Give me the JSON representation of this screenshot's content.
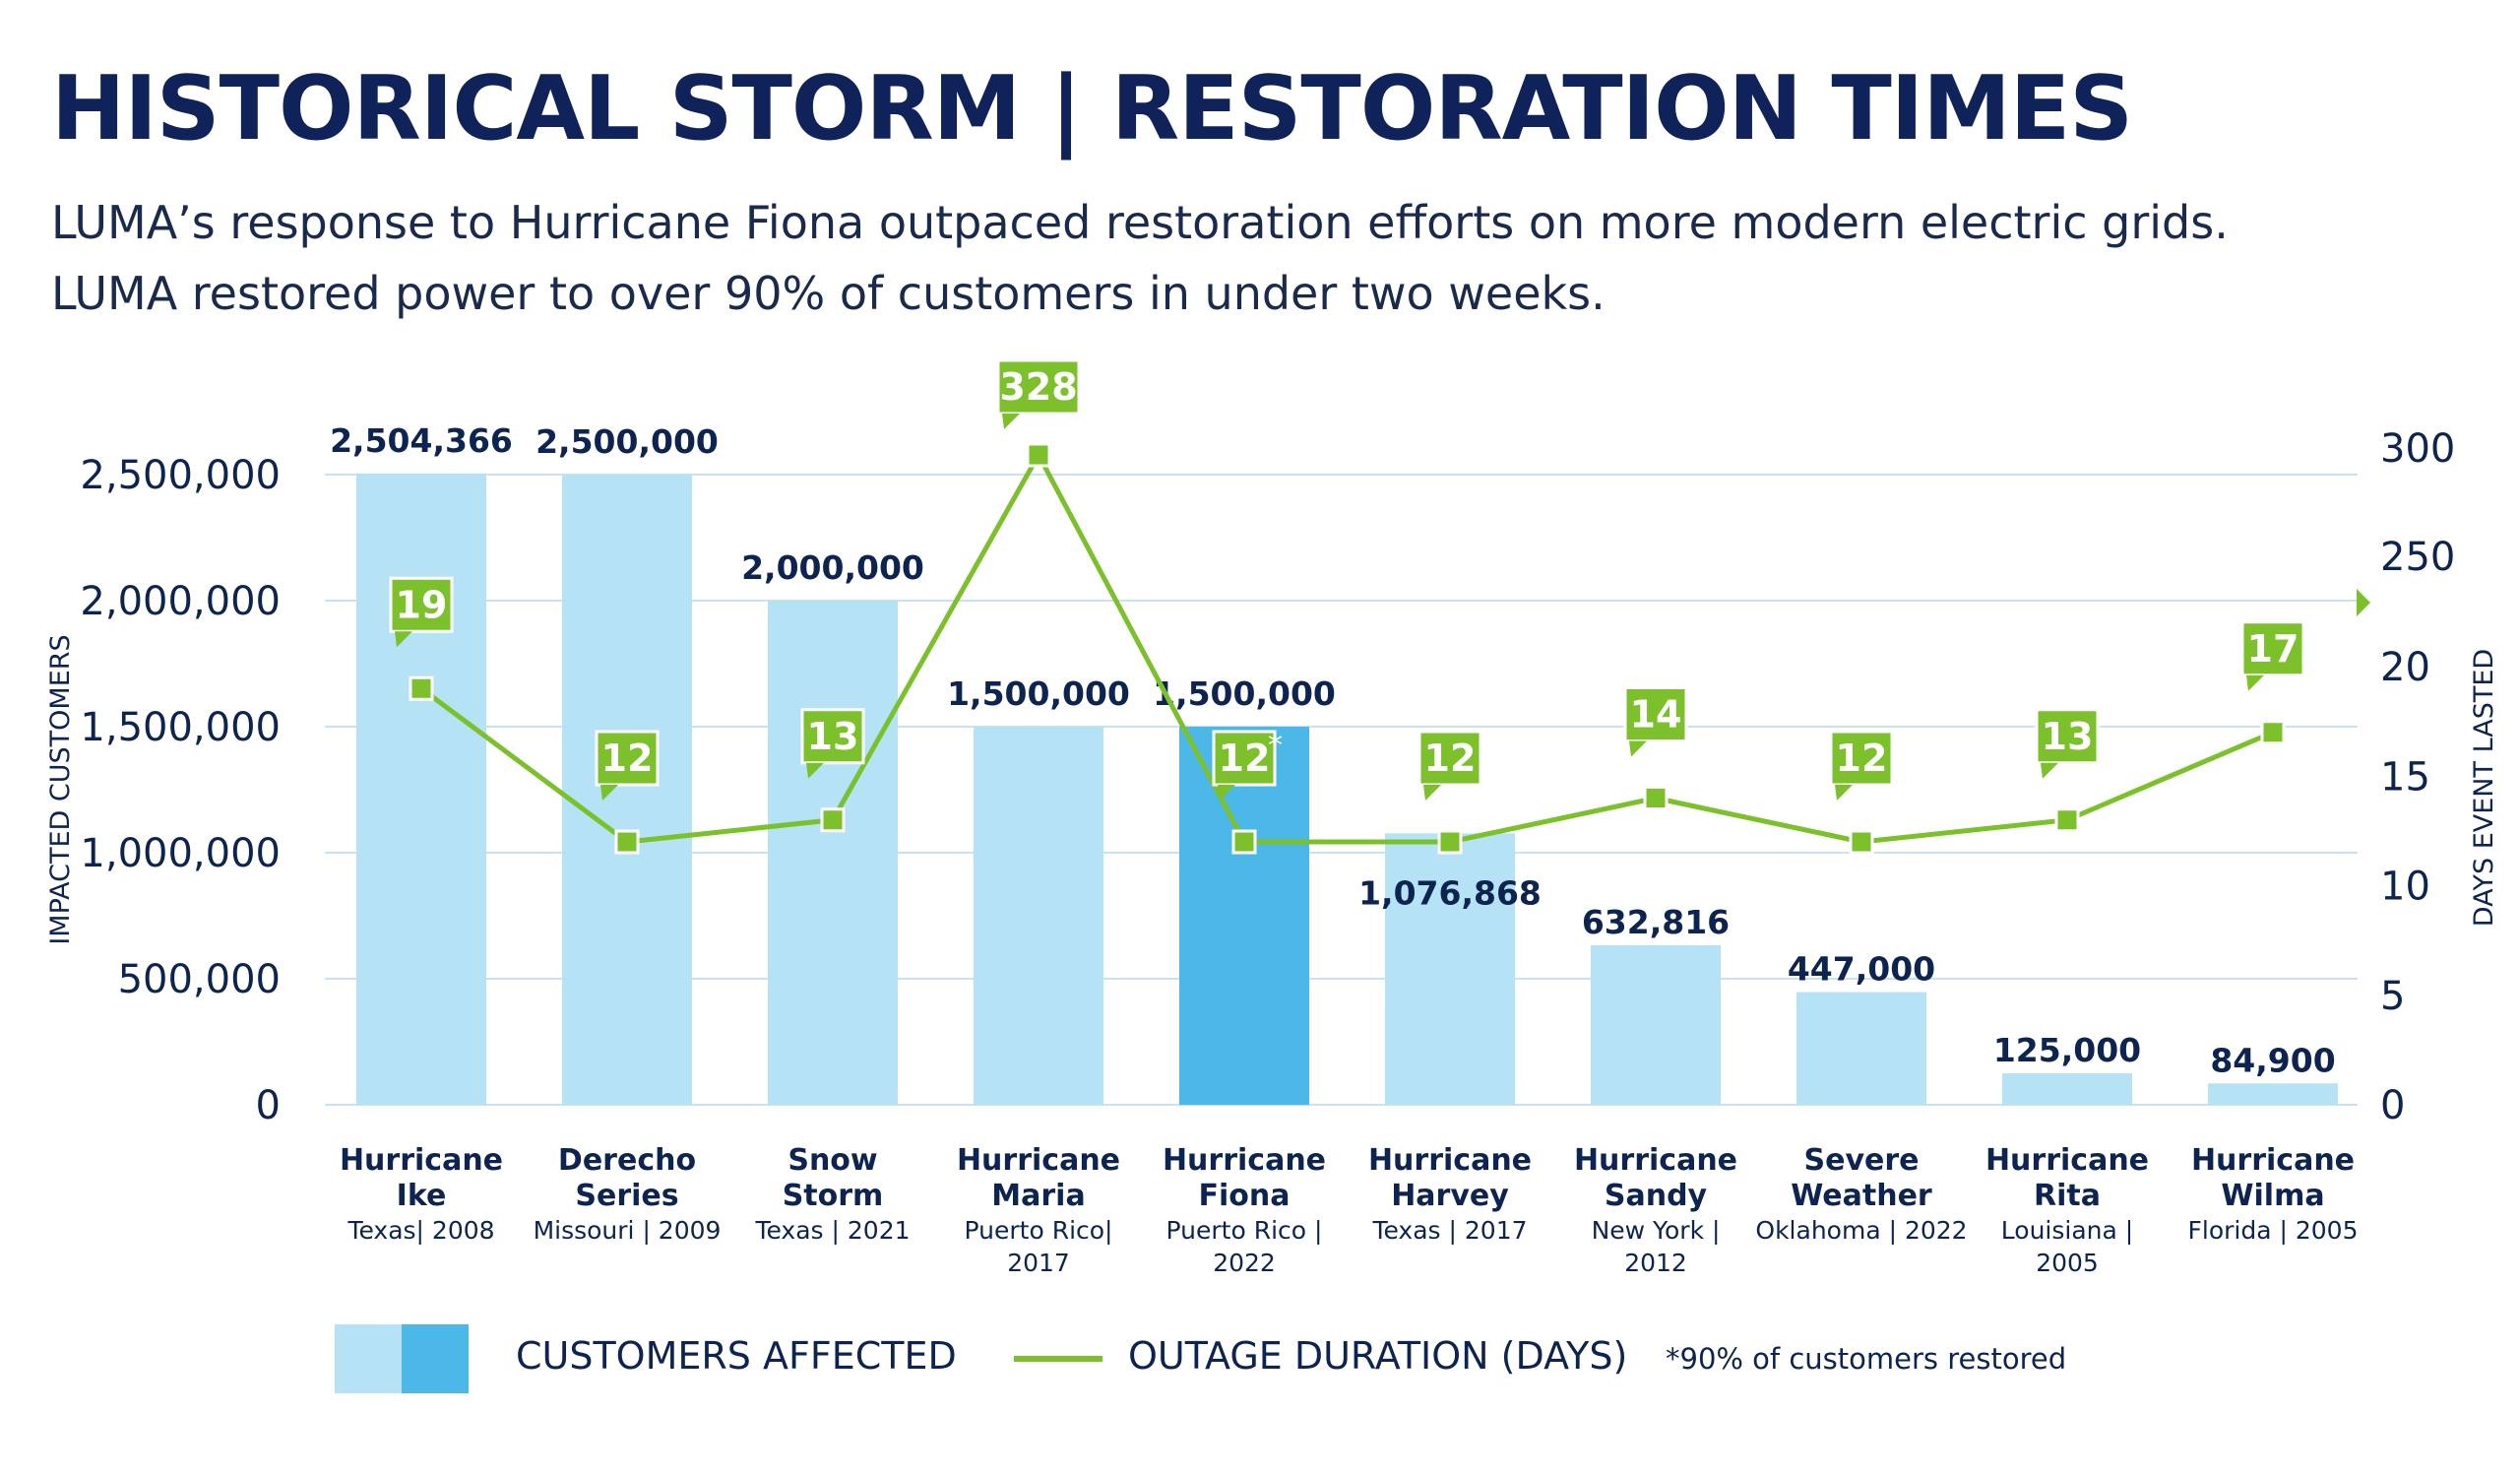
{
  "title": "HISTORICAL STORM | RESTORATION TIMES",
  "subtitle": {
    "line1": "LUMA’s response to Hurricane Fiona outpaced restoration efforts on more modern electric grids.",
    "line2": "LUMA restored power to over 90% of customers in under two weeks."
  },
  "chart_data": {
    "type": "bar",
    "categories": [
      {
        "name": [
          "Hurricane",
          "Ike"
        ],
        "location": [
          "Texas| 2008"
        ]
      },
      {
        "name": [
          "Derecho",
          "Series"
        ],
        "location": [
          "Missouri | 2009"
        ]
      },
      {
        "name": [
          "Snow",
          "Storm"
        ],
        "location": [
          "Texas | 2021"
        ]
      },
      {
        "name": [
          "Hurricane",
          "Maria"
        ],
        "location": [
          "Puerto Rico|",
          "2017"
        ]
      },
      {
        "name": [
          "Hurricane",
          "Fiona"
        ],
        "location": [
          "Puerto Rico |",
          "2022"
        ]
      },
      {
        "name": [
          "Hurricane",
          "Harvey"
        ],
        "location": [
          "Texas | 2017"
        ]
      },
      {
        "name": [
          "Hurricane",
          "Sandy"
        ],
        "location": [
          "New York |",
          "2012"
        ]
      },
      {
        "name": [
          "Severe",
          "Weather"
        ],
        "location": [
          "Oklahoma | 2022"
        ]
      },
      {
        "name": [
          "Hurricane",
          "Rita"
        ],
        "location": [
          "Louisiana |",
          "2005"
        ]
      },
      {
        "name": [
          "Hurricane",
          "Wilma"
        ],
        "location": [
          "Florida | 2005"
        ]
      }
    ],
    "series": [
      {
        "name": "CUSTOMERS AFFECTED",
        "type": "bar",
        "axis": "left",
        "values": [
          2504366,
          2500000,
          2000000,
          1500000,
          1500000,
          1076868,
          632816,
          447000,
          125000,
          84900
        ],
        "labels": [
          "2,504,366",
          "2,500,000",
          "2,000,000",
          "1,500,000",
          "1,500,000",
          "1,076,868",
          "632,816",
          "447,000",
          "125,000",
          "84,900"
        ],
        "highlight_index": 4
      },
      {
        "name": "OUTAGE DURATION (DAYS)",
        "type": "line",
        "axis": "right",
        "values": [
          19,
          12,
          13,
          328,
          12,
          12,
          14,
          12,
          13,
          17
        ],
        "labels": [
          "19",
          "12",
          "13",
          "328",
          "12",
          "12",
          "14",
          "12",
          "13",
          "17"
        ],
        "asterisk_index": 4
      }
    ],
    "ylabel": "IMPACTED CUSTOMERS",
    "y2label": "DAYS EVENT LASTED",
    "ylim": [
      0,
      2500000
    ],
    "yticks": [
      "0",
      "500,000",
      "1,000,000",
      "1,500,000",
      "2,000,000",
      "2,500,000"
    ],
    "y2ticks": [
      "0",
      "5",
      "10",
      "15",
      "20",
      "250",
      "300"
    ],
    "y2_axis_break": "between 20 and 250",
    "grid": true,
    "legend_position": "bottom",
    "footnote": "*90% of customers restored",
    "asterisk": "*"
  },
  "colors": {
    "bar": "#b5e2f5",
    "bar_highlight": "#4cb8e8",
    "line": "#7cc02b",
    "title": "#0f2259",
    "text": "#0d2350",
    "grid": "#c9e3f2"
  },
  "legend": {
    "bar_label": "CUSTOMERS AFFECTED",
    "line_label": "OUTAGE DURATION (DAYS)",
    "note": "*90% of customers restored"
  }
}
